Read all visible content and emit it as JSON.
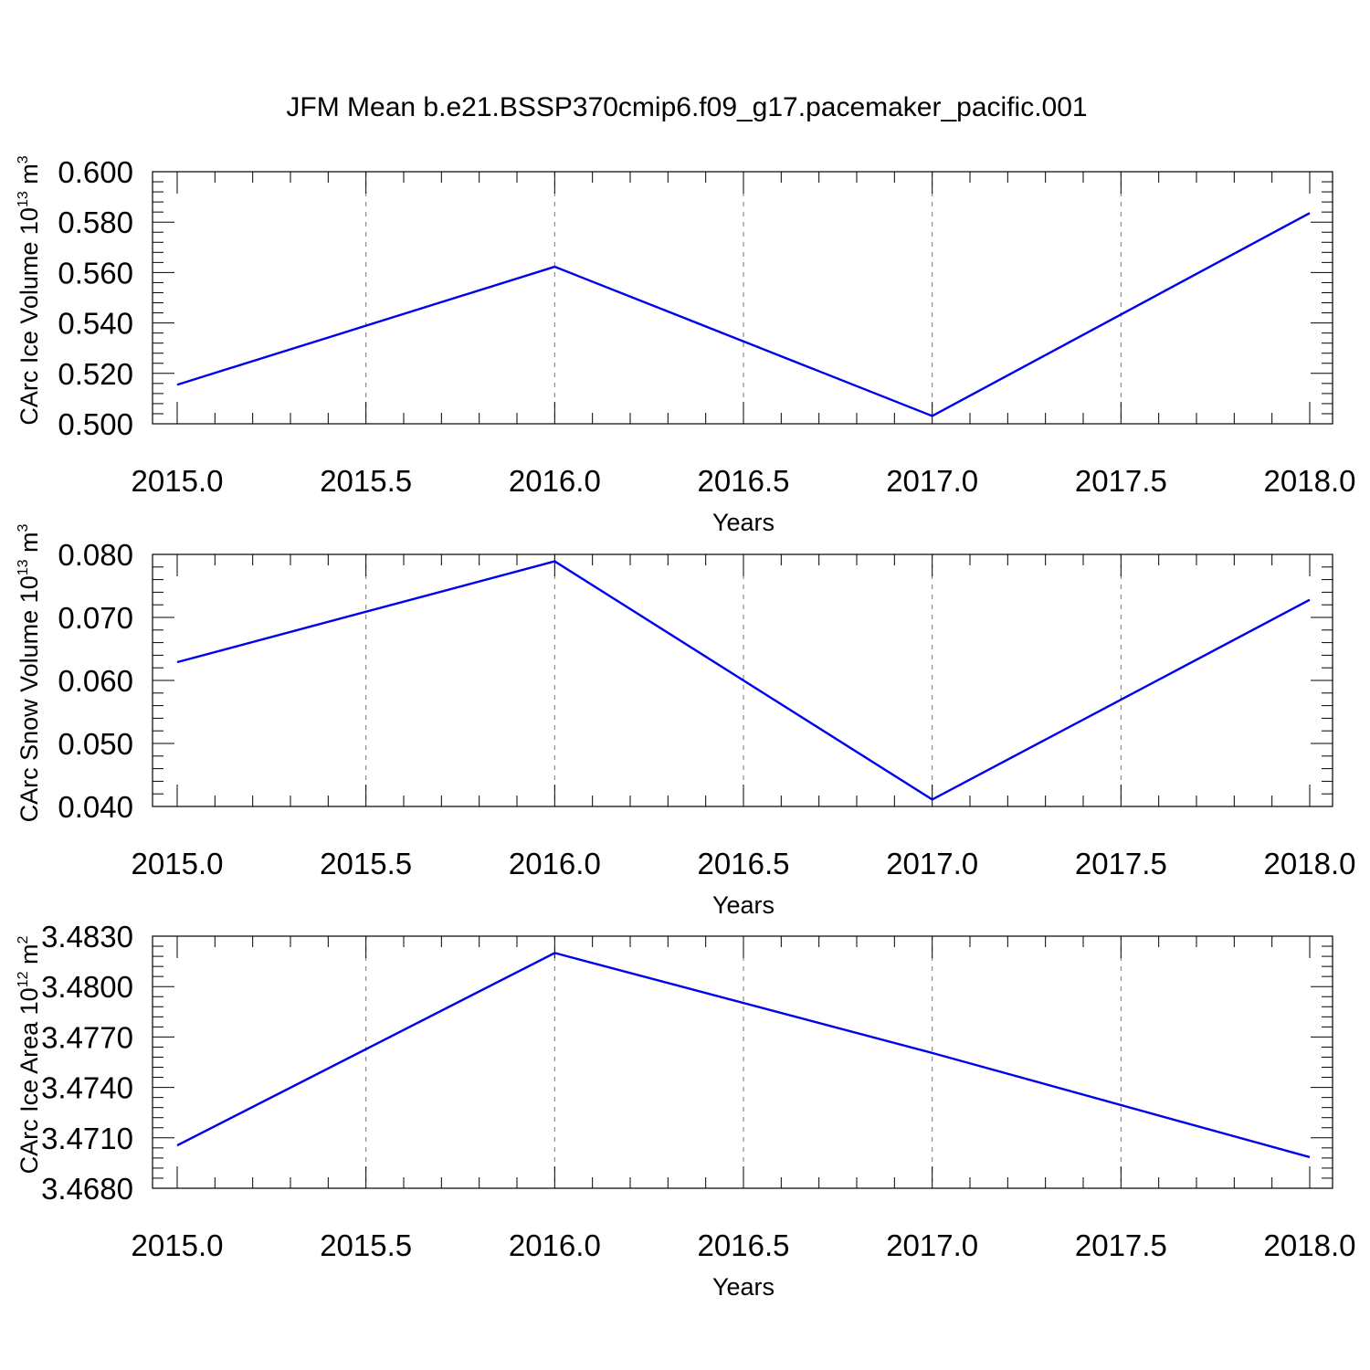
{
  "title": "JFM Mean b.e21.BSSP370cmip6.f09_g17.pacemaker_pacific.001",
  "colors": {
    "line": "#0000ee",
    "axis": "#000000",
    "grid": "#777777"
  },
  "chart_data": [
    {
      "type": "line",
      "xlabel": "Years",
      "ylabel": {
        "text": "CArc Ice Volume 10",
        "sup": "13",
        "unit": " m",
        "unit_sup": "3"
      },
      "xlim": [
        2015.0,
        2018.0
      ],
      "ylim": [
        0.5,
        0.6
      ],
      "xticks": [
        "2015.0",
        "2015.5",
        "2016.0",
        "2016.5",
        "2017.0",
        "2017.5",
        "2018.0"
      ],
      "yticks": [
        "0.500",
        "0.520",
        "0.540",
        "0.560",
        "0.580",
        "0.600"
      ],
      "x": [
        2015,
        2016,
        2017,
        2018
      ],
      "values": [
        0.5155,
        0.5623,
        0.5031,
        0.5836
      ],
      "grid": "vertical-dashed"
    },
    {
      "type": "line",
      "xlabel": "Years",
      "ylabel": {
        "text": "CArc Snow Volume 10",
        "sup": "13",
        "unit": " m",
        "unit_sup": "3"
      },
      "xlim": [
        2015.0,
        2018.0
      ],
      "ylim": [
        0.04,
        0.08
      ],
      "xticks": [
        "2015.0",
        "2015.5",
        "2016.0",
        "2016.5",
        "2017.0",
        "2017.5",
        "2018.0"
      ],
      "yticks": [
        "0.040",
        "0.050",
        "0.060",
        "0.070",
        "0.080"
      ],
      "x": [
        2015,
        2016,
        2017,
        2018
      ],
      "values": [
        0.0629,
        0.0789,
        0.0411,
        0.0728
      ],
      "grid": "vertical-dashed"
    },
    {
      "type": "line",
      "xlabel": "Years",
      "ylabel": {
        "text": "CArc Ice Area 10",
        "sup": "12",
        "unit": " m",
        "unit_sup": "2"
      },
      "xlim": [
        2015.0,
        2018.0
      ],
      "ylim": [
        3.468,
        3.483
      ],
      "xticks": [
        "2015.0",
        "2015.5",
        "2016.0",
        "2016.5",
        "2017.0",
        "2017.5",
        "2018.0"
      ],
      "yticks": [
        "3.4680",
        "3.4710",
        "3.4740",
        "3.4770",
        "3.4800",
        "3.4830"
      ],
      "x": [
        2015,
        2016,
        2017,
        2018
      ],
      "values": [
        3.47055,
        3.482,
        3.47605,
        3.46985
      ],
      "grid": "vertical-dashed"
    }
  ]
}
